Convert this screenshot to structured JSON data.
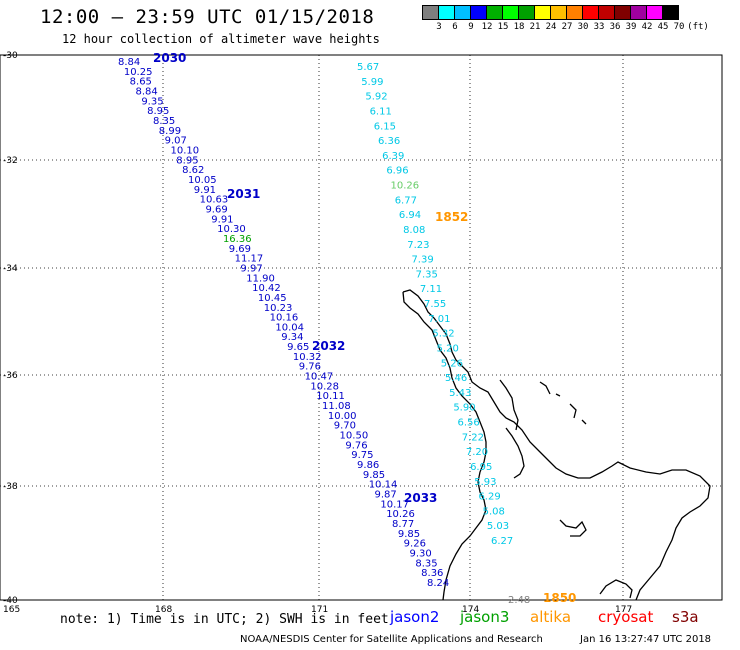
{
  "header": {
    "title": "12:00 – 23:59 UTC 01/15/2018",
    "subtitle": "12 hour collection of altimeter wave heights"
  },
  "scale": {
    "unit": "(ft)",
    "colors": [
      "#7f7f7f",
      "#00ffff",
      "#00bfff",
      "#0000ff",
      "#00b000",
      "#00ff00",
      "#00a000",
      "#ffff00",
      "#ffbf00",
      "#ff8000",
      "#ff0000",
      "#c00000",
      "#800000",
      "#a000a0",
      "#ff00ff",
      "#000000"
    ],
    "labels": [
      "3",
      "6",
      "9",
      "12",
      "15",
      "18",
      "21",
      "24",
      "27",
      "30",
      "33",
      "36",
      "39",
      "42",
      "45",
      "70"
    ]
  },
  "axes": {
    "lon_ticks": [
      "165",
      "168",
      "171",
      "174",
      "177"
    ],
    "lat_ticks": [
      "-30",
      "-32",
      "-34",
      "-36",
      "-38",
      "-40"
    ]
  },
  "tracks": [
    {
      "satellite": "jason2",
      "color": "#0000c8",
      "labels": [
        {
          "text": "2030"
        },
        {
          "text": "2031"
        },
        {
          "text": "2032"
        },
        {
          "text": "2033"
        }
      ],
      "values": [
        "8.84",
        "10.25",
        "8.65",
        "8.84",
        "9.35",
        "8.95",
        "8.35",
        "8.99",
        "9.07",
        "10.10",
        "8.95",
        "8.62",
        "10.05",
        "9.91",
        "10.63",
        "9.69",
        "9.91",
        "10.30",
        "16.36",
        "9.69",
        "11.17",
        "9.97",
        "11.90",
        "10.42",
        "10.45",
        "10.23",
        "10.16",
        "10.04",
        "9.34",
        "9.65",
        "10.32",
        "9.76",
        "10.47",
        "10.28",
        "10.11",
        "11.08",
        "10.00",
        "9.70",
        "10.50",
        "9.76",
        "9.75",
        "9.86",
        "9.85",
        "10.14",
        "9.87",
        "10.17",
        "10.26",
        "8.77",
        "9.85",
        "9.26",
        "9.30",
        "8.35",
        "8.36",
        "8.24"
      ]
    },
    {
      "satellite": "jason3",
      "color": "#00c8e6",
      "labels": [],
      "values": [
        "5.67",
        "5.99",
        "5.92",
        "6.11",
        "6.15",
        "6.36",
        "6.39",
        "6.96",
        "10.26",
        "6.77",
        "6.94",
        "8.08",
        "7.23",
        "7.39",
        "7.35",
        "7.11",
        "7.55",
        "7.01",
        "5.32",
        "5.20",
        "5.26",
        "5.46",
        "5.43",
        "5.90",
        "6.56",
        "7.22",
        "7.20",
        "6.95",
        "5.93",
        "6.29",
        "5.08",
        "5.03",
        "6.27"
      ]
    },
    {
      "satellite": "altika",
      "color": "#ff9600",
      "labels": [
        {
          "text": "1852"
        },
        {
          "text": "1850"
        }
      ],
      "values": [
        "2.48"
      ]
    }
  ],
  "footer": {
    "note": "note: 1) Time is in UTC; 2) SWH is in feet",
    "legend": [
      {
        "name": "jason2",
        "color": "#0000ff"
      },
      {
        "name": "jason3",
        "color": "#00a000"
      },
      {
        "name": "altika",
        "color": "#ff9600"
      },
      {
        "name": "cryosat",
        "color": "#ff0000"
      },
      {
        "name": "s3a",
        "color": "#800000"
      }
    ],
    "credit": "NOAA/NESDIS Center for Satellite Applications and Research",
    "timestamp": "Jan 16 13:27:47 UTC 2018"
  }
}
